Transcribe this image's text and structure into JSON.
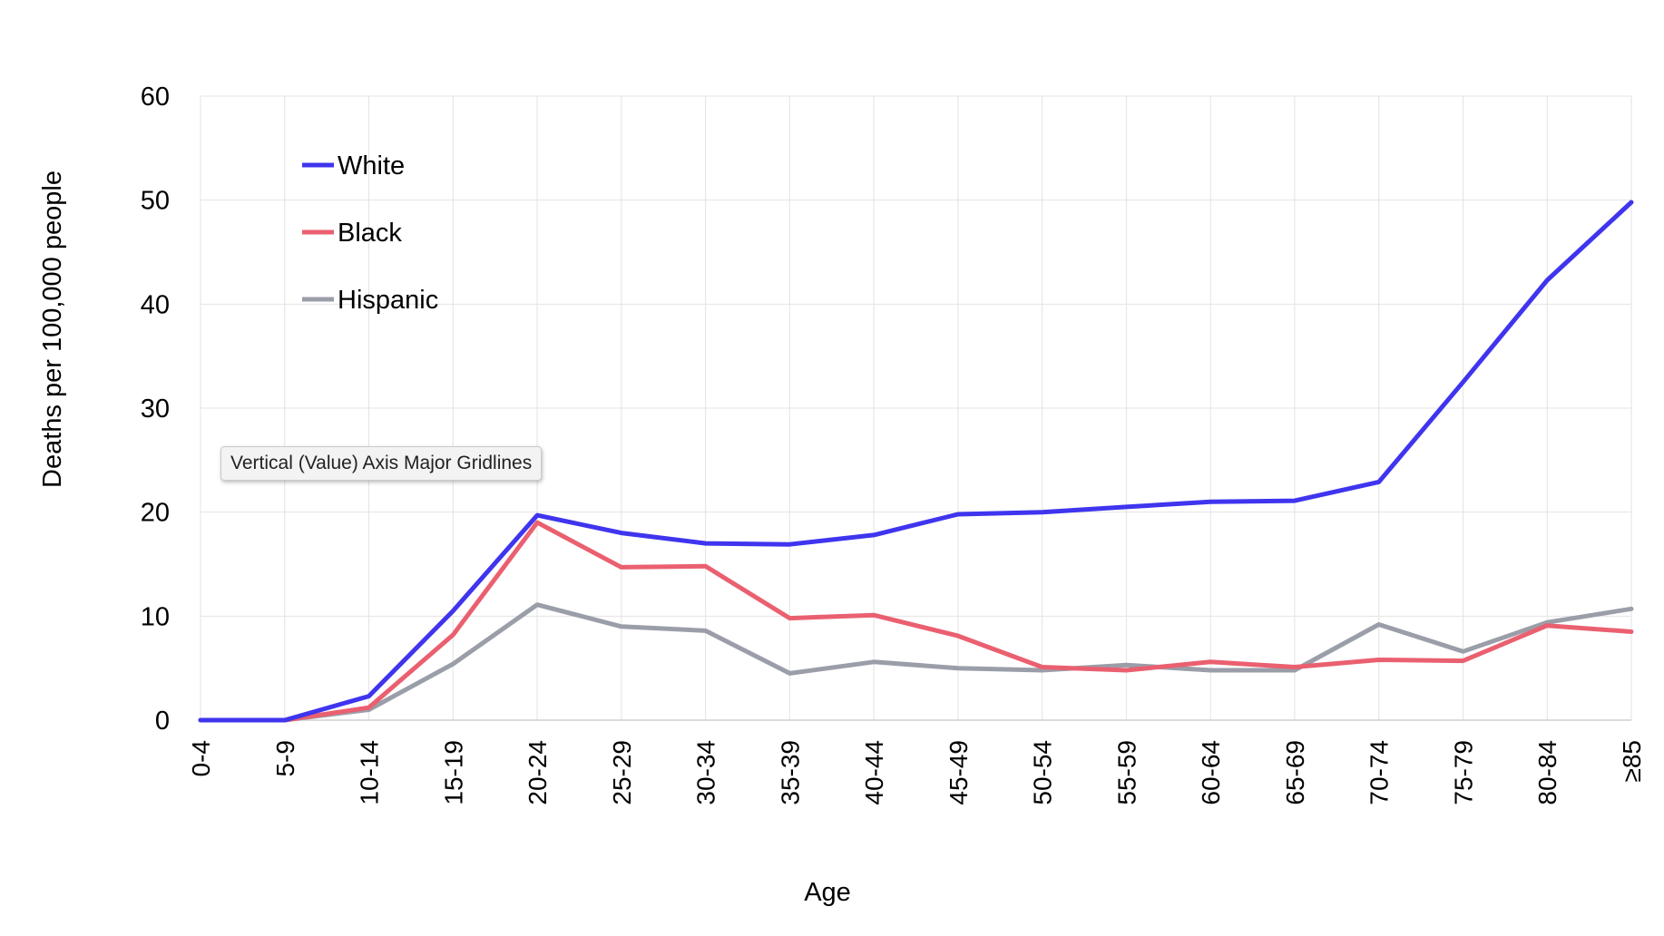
{
  "chart_data": {
    "type": "line",
    "title": "",
    "xlabel": "Age",
    "ylabel": "Deaths per 100,000 people",
    "ylim": [
      0,
      60
    ],
    "yticks": [
      "0",
      "10",
      "20",
      "30",
      "40",
      "50",
      "60"
    ],
    "categories": [
      "0-4",
      "5-9",
      "10-14",
      "15-19",
      "20-24",
      "25-29",
      "30-34",
      "35-39",
      "40-44",
      "45-49",
      "50-54",
      "55-59",
      "60-64",
      "65-69",
      "70-74",
      "75-79",
      "80-84",
      "≥85"
    ],
    "grid": true,
    "legend_position": "top-left",
    "series": [
      {
        "name": "White",
        "color": "#3f35ee",
        "values": [
          0,
          0,
          2.3,
          10.5,
          19.7,
          18.0,
          17.0,
          16.9,
          17.8,
          19.8,
          20.0,
          20.5,
          21.0,
          21.1,
          22.9,
          32.5,
          42.3,
          49.8
        ]
      },
      {
        "name": "Black",
        "color": "#ea6070",
        "values": [
          0,
          0,
          1.2,
          8.2,
          19.0,
          14.7,
          14.8,
          9.8,
          10.1,
          8.1,
          5.1,
          4.8,
          5.6,
          5.1,
          5.8,
          5.7,
          9.1,
          8.5
        ]
      },
      {
        "name": "Hispanic",
        "color": "#9a9ea8",
        "values": [
          0,
          0,
          1.0,
          5.4,
          11.1,
          9.0,
          8.6,
          4.5,
          5.6,
          5.0,
          4.8,
          5.3,
          4.8,
          4.8,
          9.2,
          6.6,
          9.4,
          10.7
        ]
      }
    ]
  },
  "tooltip": {
    "text": "Vertical (Value) Axis Major Gridlines"
  }
}
